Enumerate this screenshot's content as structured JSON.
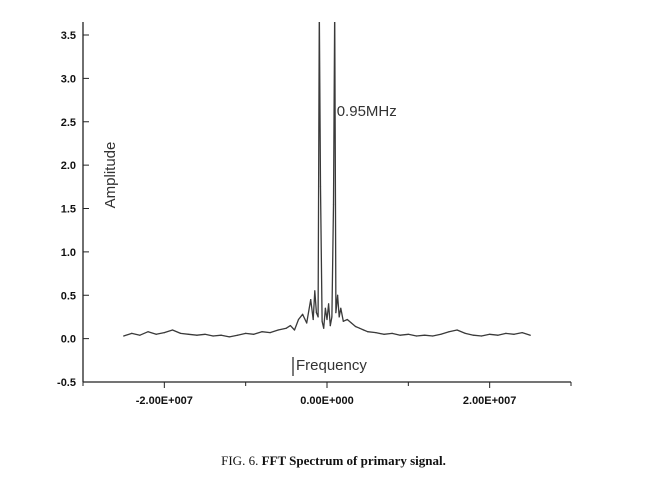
{
  "caption": {
    "prefix": "FIG. 6.",
    "title": "FFT Spectrum of primary signal."
  },
  "chart_data": {
    "type": "line",
    "xlabel": "Frequency",
    "ylabel": "Amplitude",
    "xlim": [
      -30000000,
      30000000
    ],
    "ylim": [
      -0.5,
      3.65
    ],
    "xticks": [
      -20000000,
      0,
      20000000
    ],
    "xtick_labels": [
      "-2.00E+007",
      "0.00E+000",
      "2.00E+007"
    ],
    "yticks": [
      -0.5,
      0.0,
      0.5,
      1.0,
      1.5,
      2.0,
      2.5,
      3.0,
      3.5
    ],
    "ytick_labels": [
      "-0.5",
      "0.0",
      "0.5",
      "1.0",
      "1.5",
      "2.0",
      "2.5",
      "3.0",
      "3.5"
    ],
    "grid": false,
    "annotations": [
      {
        "text": "0.95MHz",
        "x": 950000,
        "y": 2.7
      }
    ],
    "series": [
      {
        "color": "#3a3a3a",
        "x": [
          -25000000,
          -24000000,
          -23000000,
          -22000000,
          -21000000,
          -20000000,
          -19000000,
          -18000000,
          -17000000,
          -16000000,
          -15000000,
          -14000000,
          -13000000,
          -12000000,
          -11000000,
          -10000000,
          -9000000,
          -8000000,
          -7000000,
          -6000000,
          -5000000,
          -4500000,
          -4000000,
          -3500000,
          -3000000,
          -2500000,
          -2000000,
          -1700000,
          -1500000,
          -1300000,
          -1100000,
          -950000,
          -800000,
          -600000,
          -400000,
          -200000,
          0,
          200000,
          400000,
          600000,
          800000,
          950000,
          1100000,
          1300000,
          1500000,
          1700000,
          2000000,
          2500000,
          3000000,
          3500000,
          4000000,
          4500000,
          5000000,
          6000000,
          7000000,
          8000000,
          9000000,
          10000000,
          11000000,
          12000000,
          13000000,
          14000000,
          15000000,
          16000000,
          17000000,
          18000000,
          19000000,
          20000000,
          21000000,
          22000000,
          23000000,
          24000000,
          25000000
        ],
        "values": [
          0.03,
          0.06,
          0.04,
          0.08,
          0.05,
          0.07,
          0.1,
          0.06,
          0.05,
          0.04,
          0.05,
          0.03,
          0.04,
          0.02,
          0.04,
          0.06,
          0.05,
          0.08,
          0.07,
          0.1,
          0.12,
          0.15,
          0.1,
          0.22,
          0.28,
          0.18,
          0.45,
          0.22,
          0.55,
          0.3,
          0.25,
          3.8,
          1.75,
          0.2,
          0.12,
          0.35,
          0.22,
          0.4,
          0.15,
          0.25,
          1.55,
          3.8,
          0.3,
          0.5,
          0.25,
          0.35,
          0.2,
          0.22,
          0.18,
          0.14,
          0.12,
          0.1,
          0.08,
          0.07,
          0.05,
          0.06,
          0.04,
          0.05,
          0.03,
          0.04,
          0.03,
          0.05,
          0.08,
          0.1,
          0.06,
          0.04,
          0.03,
          0.05,
          0.04,
          0.06,
          0.05,
          0.07,
          0.04
        ]
      }
    ]
  }
}
